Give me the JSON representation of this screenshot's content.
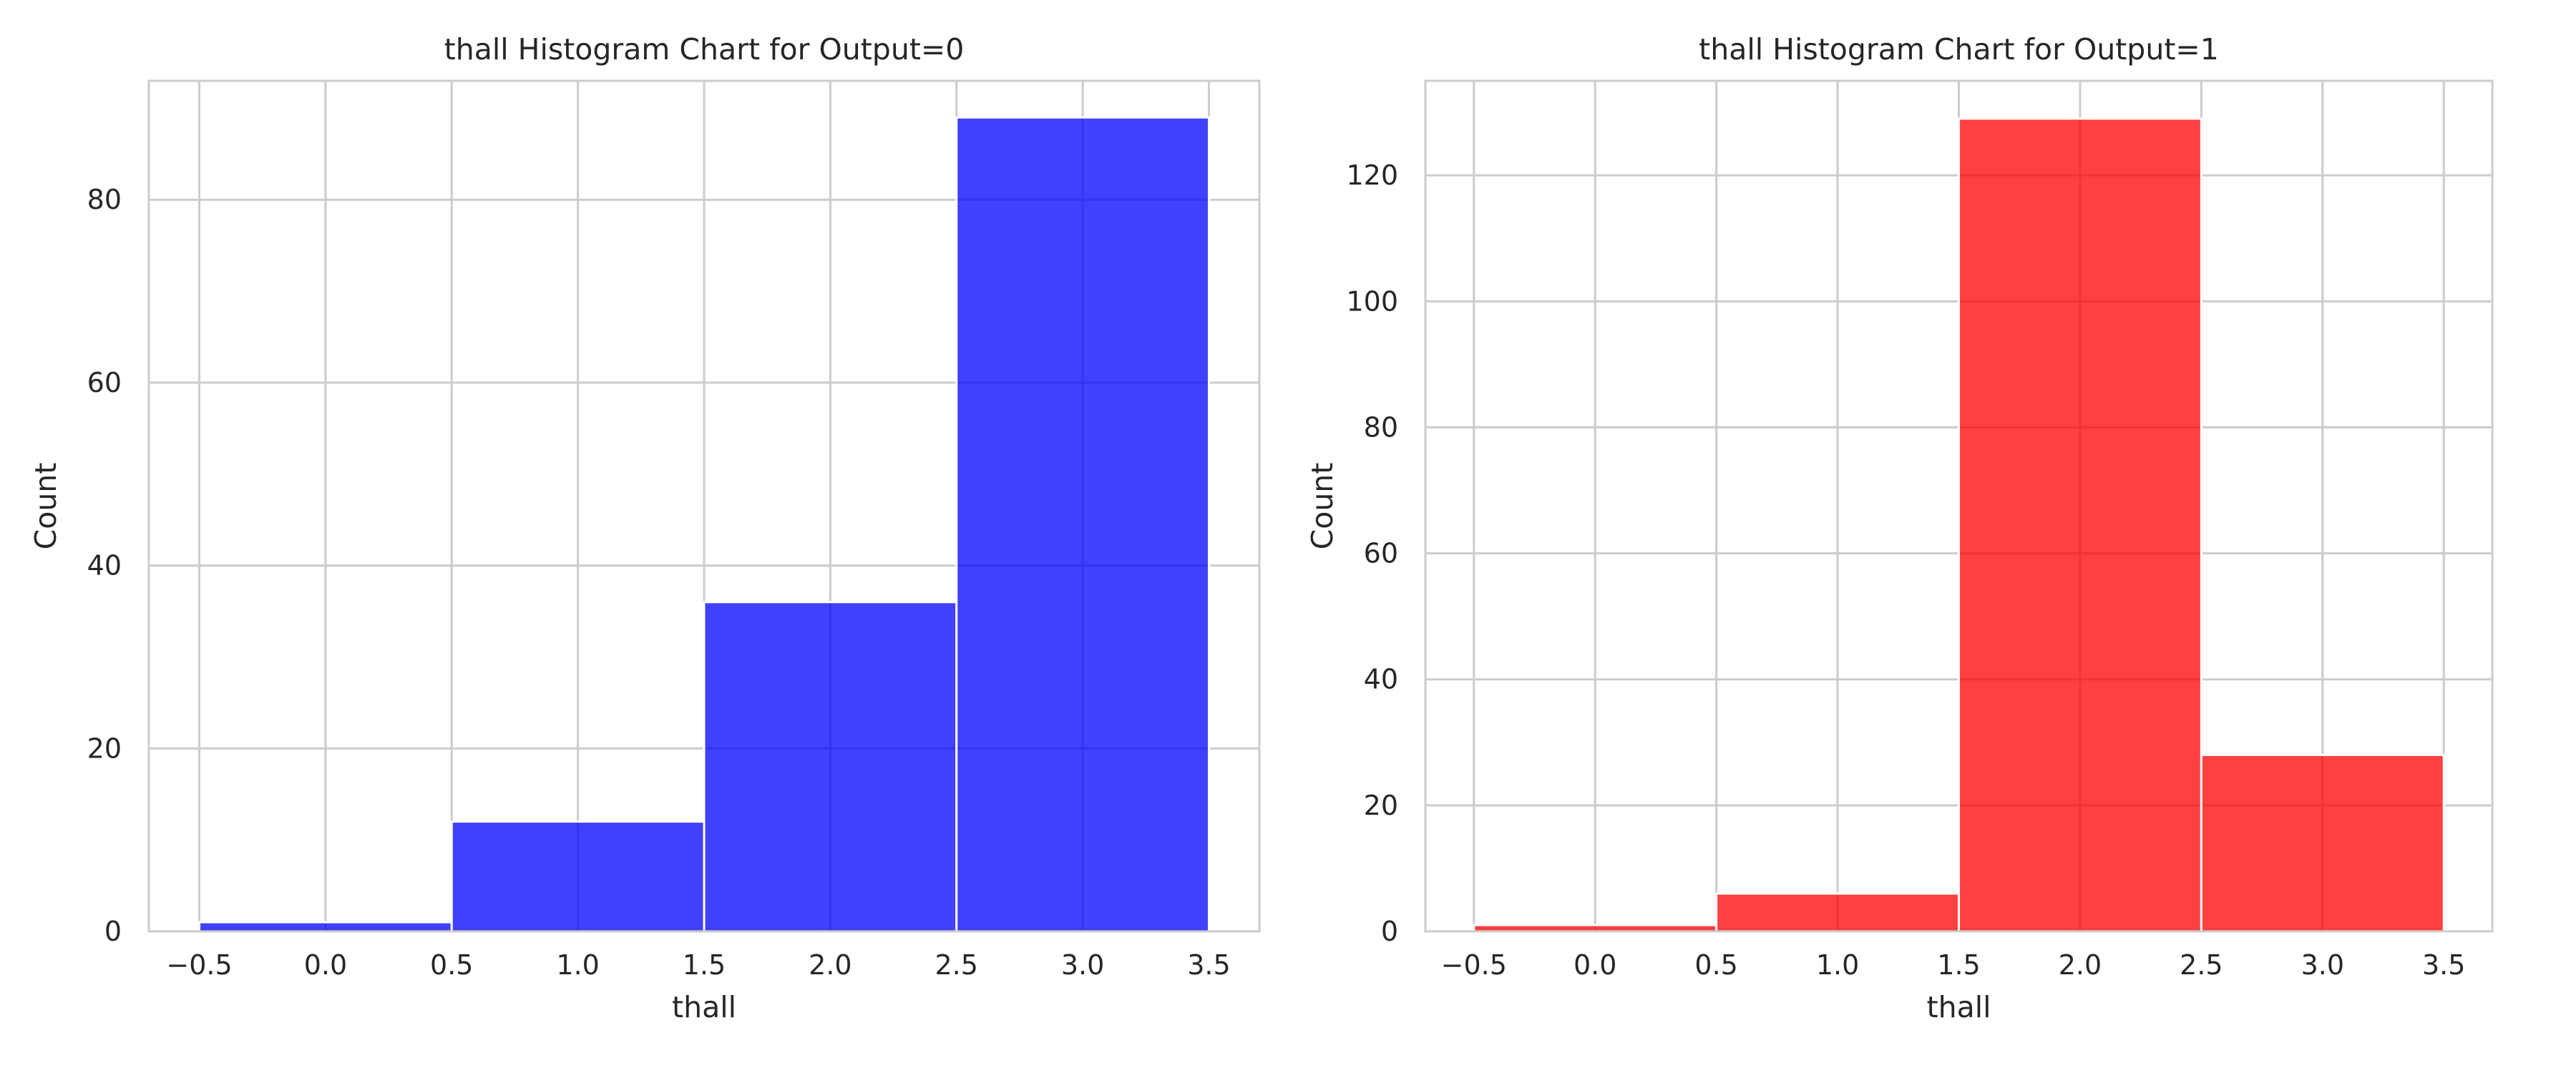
{
  "chart_data": [
    {
      "type": "bar",
      "title": "thall Histogram Chart for Output=0",
      "xlabel": "thall",
      "ylabel": "Count",
      "xlim": [
        -0.7,
        3.7
      ],
      "ylim": [
        0,
        93
      ],
      "xticks": [
        -0.5,
        0.0,
        0.5,
        1.0,
        1.5,
        2.0,
        2.5,
        3.0,
        3.5
      ],
      "xtick_labels": [
        "−0.5",
        "0.0",
        "0.5",
        "1.0",
        "1.5",
        "2.0",
        "2.5",
        "3.0",
        "3.5"
      ],
      "yticks": [
        0,
        20,
        40,
        60,
        80
      ],
      "ytick_labels": [
        "0",
        "20",
        "40",
        "60",
        "80"
      ],
      "bins": [
        [
          -0.5,
          0.5
        ],
        [
          0.5,
          1.5
        ],
        [
          1.5,
          2.5
        ],
        [
          2.5,
          3.5
        ]
      ],
      "values": [
        1,
        12,
        36,
        89
      ],
      "color": "#0000ff",
      "grid": true
    },
    {
      "type": "bar",
      "title": "thall Histogram Chart for Output=1",
      "xlabel": "thall",
      "ylabel": "Count",
      "xlim": [
        -0.7,
        3.7
      ],
      "ylim": [
        0,
        135
      ],
      "xticks": [
        -0.5,
        0.0,
        0.5,
        1.0,
        1.5,
        2.0,
        2.5,
        3.0,
        3.5
      ],
      "xtick_labels": [
        "−0.5",
        "0.0",
        "0.5",
        "1.0",
        "1.5",
        "2.0",
        "2.5",
        "3.0",
        "3.5"
      ],
      "yticks": [
        0,
        20,
        40,
        60,
        80,
        100,
        120
      ],
      "ytick_labels": [
        "0",
        "20",
        "40",
        "60",
        "80",
        "100",
        "120"
      ],
      "bins": [
        [
          -0.5,
          0.5
        ],
        [
          0.5,
          1.5
        ],
        [
          1.5,
          2.5
        ],
        [
          2.5,
          3.5
        ]
      ],
      "values": [
        1,
        6,
        129,
        28
      ],
      "color": "#ff0000",
      "grid": true
    }
  ]
}
